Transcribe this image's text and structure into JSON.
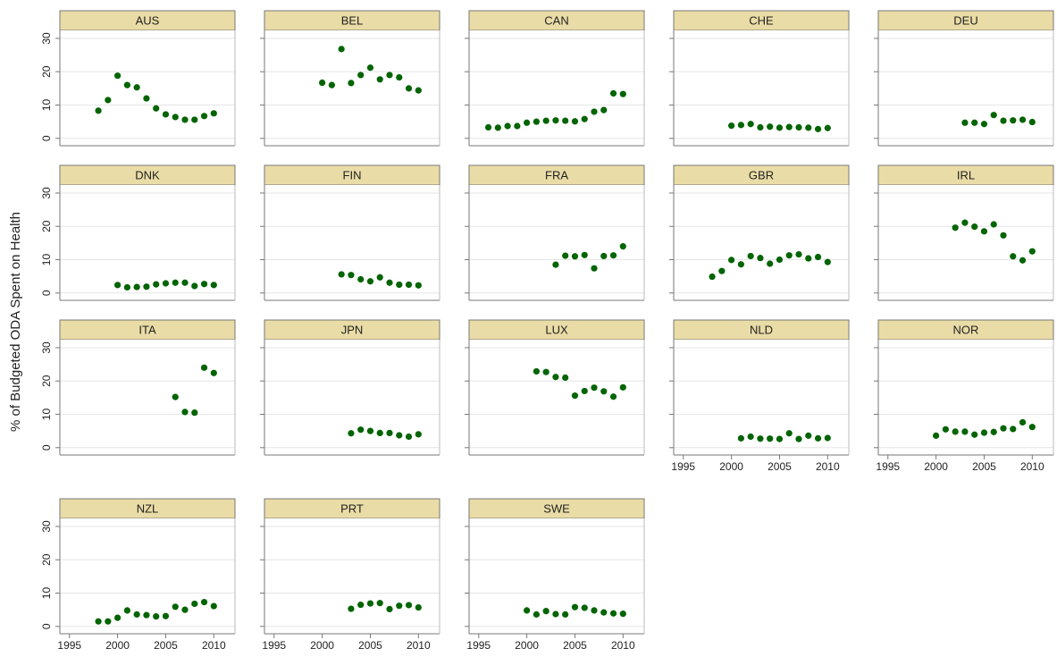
{
  "chart_data": {
    "type": "scatter",
    "ylabel": "% of Budgeted ODA Spent on Health",
    "xlim": [
      1994,
      2012.2
    ],
    "xticks": [
      1995,
      2000,
      2005,
      2010
    ],
    "ylim": [
      -2.2,
      32.4
    ],
    "yticks": [
      0,
      10,
      20,
      30
    ],
    "grid": true,
    "color": "#006400",
    "header_color": "#eadca6",
    "panels": [
      {
        "title": "AUS",
        "x": [
          1998,
          1999,
          2000,
          2001,
          2002,
          2003,
          2004,
          2005,
          2006,
          2007,
          2008,
          2009,
          2010
        ],
        "values": [
          8.3,
          11.5,
          18.8,
          16,
          15.3,
          12,
          9,
          7.2,
          6.4,
          5.6,
          5.6,
          6.7,
          7.5
        ]
      },
      {
        "title": "BEL",
        "x": [
          2000,
          2001,
          2002,
          2003,
          2004,
          2005,
          2006,
          2007,
          2008,
          2009,
          2010
        ],
        "values": [
          16.7,
          16,
          26.8,
          16.6,
          19,
          21.2,
          17.7,
          19,
          18.3,
          15,
          14.4
        ]
      },
      {
        "title": "CAN",
        "x": [
          1996,
          1997,
          1998,
          1999,
          2000,
          2001,
          2002,
          2003,
          2004,
          2005,
          2006,
          2007,
          2008,
          2009,
          2010
        ],
        "values": [
          3.3,
          3.2,
          3.7,
          3.7,
          4.7,
          5,
          5.3,
          5.4,
          5.3,
          5.1,
          5.8,
          8,
          8.5,
          13.5,
          13.3
        ]
      },
      {
        "title": "CHE",
        "x": [
          2000,
          2001,
          2002,
          2003,
          2004,
          2005,
          2006,
          2007,
          2008,
          2009,
          2010
        ],
        "values": [
          3.8,
          4,
          4.3,
          3.3,
          3.5,
          3.2,
          3.4,
          3.3,
          3.2,
          2.8,
          3.1
        ]
      },
      {
        "title": "DEU",
        "x": [
          2003,
          2004,
          2005,
          2006,
          2007,
          2008,
          2009,
          2010
        ],
        "values": [
          4.7,
          4.7,
          4.3,
          7,
          5.3,
          5.4,
          5.6,
          4.9
        ]
      },
      {
        "title": "DNK",
        "x": [
          2000,
          2001,
          2002,
          2003,
          2004,
          2005,
          2006,
          2007,
          2008,
          2009,
          2010
        ],
        "values": [
          2.4,
          1.7,
          1.8,
          1.9,
          2.6,
          2.9,
          3.1,
          3.1,
          2.1,
          2.7,
          2.4
        ]
      },
      {
        "title": "FIN",
        "x": [
          2002,
          2003,
          2004,
          2005,
          2006,
          2007,
          2008,
          2009,
          2010
        ],
        "values": [
          5.6,
          5.4,
          4.1,
          3.5,
          4.7,
          3.1,
          2.5,
          2.5,
          2.3
        ]
      },
      {
        "title": "FRA",
        "x": [
          2003,
          2004,
          2005,
          2006,
          2007,
          2008,
          2009,
          2010
        ],
        "values": [
          8.5,
          11.2,
          11,
          11.4,
          7.4,
          11.1,
          11.3,
          14
        ]
      },
      {
        "title": "GBR",
        "x": [
          1998,
          1999,
          2000,
          2001,
          2002,
          2003,
          2004,
          2005,
          2006,
          2007,
          2008,
          2009,
          2010
        ],
        "values": [
          4.9,
          6.6,
          9.9,
          8.6,
          11.1,
          10.5,
          8.8,
          10,
          11.3,
          11.6,
          10.4,
          10.8,
          9.3
        ]
      },
      {
        "title": "IRL",
        "x": [
          2002,
          2003,
          2004,
          2005,
          2006,
          2007,
          2008,
          2009,
          2010
        ],
        "values": [
          19.6,
          21.1,
          19.9,
          18.5,
          20.6,
          17.3,
          11,
          9.8,
          12.5
        ]
      },
      {
        "title": "ITA",
        "x": [
          2006,
          2007,
          2008,
          2009,
          2010
        ],
        "values": [
          15.2,
          10.7,
          10.5,
          24,
          22.4
        ]
      },
      {
        "title": "JPN",
        "x": [
          2003,
          2004,
          2005,
          2006,
          2007,
          2008,
          2009,
          2010
        ],
        "values": [
          4.3,
          5.4,
          5,
          4.4,
          4.4,
          3.7,
          3.3,
          4
        ]
      },
      {
        "title": "LUX",
        "x": [
          2001,
          2002,
          2003,
          2004,
          2005,
          2006,
          2007,
          2008,
          2009,
          2010
        ],
        "values": [
          22.9,
          22.7,
          21.2,
          21,
          15.6,
          17,
          18,
          16.9,
          15.3,
          18.1
        ]
      },
      {
        "title": "NLD",
        "x": [
          2001,
          2002,
          2003,
          2004,
          2005,
          2006,
          2007,
          2008,
          2009,
          2010
        ],
        "values": [
          2.8,
          3.3,
          2.7,
          2.7,
          2.6,
          4.3,
          2.6,
          3.6,
          2.8,
          2.9
        ]
      },
      {
        "title": "NOR",
        "x": [
          2000,
          2001,
          2002,
          2003,
          2004,
          2005,
          2006,
          2007,
          2008,
          2009,
          2010
        ],
        "values": [
          3.6,
          5.5,
          4.8,
          4.8,
          3.9,
          4.5,
          4.7,
          5.8,
          5.6,
          7.6,
          6.2
        ]
      },
      {
        "title": "NZL",
        "x": [
          1998,
          1999,
          2000,
          2001,
          2002,
          2003,
          2004,
          2005,
          2006,
          2007,
          2008,
          2009,
          2010
        ],
        "values": [
          1.5,
          1.5,
          2.6,
          4.8,
          3.6,
          3.4,
          3,
          3.1,
          5.9,
          5,
          6.8,
          7.3,
          6.1
        ]
      },
      {
        "title": "PRT",
        "x": [
          2003,
          2004,
          2005,
          2006,
          2007,
          2008,
          2009,
          2010
        ],
        "values": [
          5.3,
          6.5,
          6.9,
          7,
          5.2,
          6.2,
          6.4,
          5.7
        ]
      },
      {
        "title": "SWE",
        "x": [
          2000,
          2001,
          2002,
          2003,
          2004,
          2005,
          2006,
          2007,
          2008,
          2009,
          2010
        ],
        "values": [
          4.8,
          3.6,
          4.6,
          3.7,
          3.6,
          5.8,
          5.6,
          4.8,
          4.2,
          3.9,
          3.8
        ]
      }
    ]
  }
}
